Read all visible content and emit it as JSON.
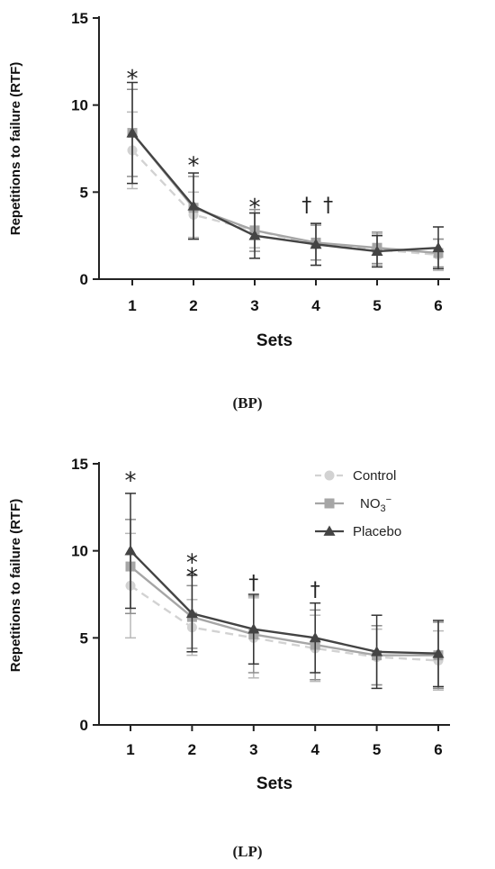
{
  "chart_data": [
    {
      "type": "line",
      "caption": "(BP)",
      "xlabel": "Sets",
      "ylabel": "Repetitions to failure (RTF)",
      "x": [
        1,
        2,
        3,
        4,
        5,
        6
      ],
      "xticks": [
        "1",
        "2",
        "3",
        "4",
        "5",
        "6"
      ],
      "ylim": [
        0,
        15
      ],
      "yticks": [
        "0",
        "5",
        "10",
        "15"
      ],
      "series": [
        {
          "name": "Control",
          "marker": "circle",
          "style": "dashed",
          "color": "#d2d2d2",
          "values": [
            7.4,
            3.7,
            2.8,
            2.0,
            1.7,
            1.4
          ],
          "error": [
            2.2,
            1.3,
            1.0,
            1.2,
            0.9,
            0.9
          ]
        },
        {
          "name": "NO3−",
          "marker": "square",
          "style": "solid",
          "color": "#a6a6a6",
          "values": [
            8.4,
            4.1,
            2.8,
            2.1,
            1.8,
            1.5
          ],
          "error": [
            2.5,
            1.8,
            1.2,
            1.0,
            0.9,
            0.8
          ]
        },
        {
          "name": "Placebo",
          "marker": "triangle",
          "style": "solid",
          "color": "#444444",
          "values": [
            8.4,
            4.2,
            2.5,
            2.0,
            1.6,
            1.8
          ],
          "error": [
            2.9,
            1.9,
            1.3,
            1.2,
            0.9,
            1.2
          ]
        }
      ],
      "annotations": [
        {
          "x": 1,
          "y": 11.8,
          "text": "*"
        },
        {
          "x": 2,
          "y": 6.8,
          "text": "*"
        },
        {
          "x": 3,
          "y": 4.4,
          "text": "*"
        },
        {
          "x": 3.85,
          "y": 4.3,
          "text": "†"
        },
        {
          "x": 4.2,
          "y": 4.3,
          "text": "†"
        }
      ]
    },
    {
      "type": "line",
      "caption": "(LP)",
      "xlabel": "Sets",
      "ylabel": "Repetitions to failure (RTF)",
      "x": [
        1,
        2,
        3,
        4,
        5,
        6
      ],
      "xticks": [
        "1",
        "2",
        "3",
        "4",
        "5",
        "6"
      ],
      "ylim": [
        0,
        15
      ],
      "yticks": [
        "0",
        "5",
        "10",
        "15"
      ],
      "legend_position": "top-right",
      "series": [
        {
          "name": "Control",
          "marker": "circle",
          "style": "dashed",
          "color": "#d2d2d2",
          "values": [
            8.0,
            5.6,
            5.0,
            4.4,
            3.9,
            3.7
          ],
          "error": [
            3.0,
            1.6,
            2.3,
            1.9,
            1.6,
            1.7
          ]
        },
        {
          "name": "NO3−",
          "marker": "square",
          "style": "solid",
          "color": "#a6a6a6",
          "values": [
            9.1,
            6.2,
            5.2,
            4.6,
            4.0,
            4.0
          ],
          "error": [
            2.7,
            1.8,
            2.2,
            2.0,
            1.7,
            1.9
          ]
        },
        {
          "name": "Placebo",
          "marker": "triangle",
          "style": "solid",
          "color": "#444444",
          "values": [
            10.0,
            6.4,
            5.5,
            5.0,
            4.2,
            4.1
          ],
          "error": [
            3.3,
            2.2,
            2.0,
            2.0,
            2.1,
            1.9
          ]
        }
      ],
      "annotations": [
        {
          "x": 1,
          "y": 14.3,
          "text": "*"
        },
        {
          "x": 2,
          "y": 9.6,
          "text": "*"
        },
        {
          "x": 2,
          "y": 8.8,
          "text": "*"
        },
        {
          "x": 3,
          "y": 8.2,
          "text": "†"
        },
        {
          "x": 4,
          "y": 7.8,
          "text": "†"
        }
      ],
      "legend": [
        {
          "label": "Control",
          "marker": "circle",
          "style": "dashed",
          "color": "#d2d2d2"
        },
        {
          "label_main": "NO",
          "label_sub": "3",
          "label_sup": "−",
          "marker": "square",
          "style": "solid",
          "color": "#a6a6a6"
        },
        {
          "label": "Placebo",
          "marker": "triangle",
          "style": "solid",
          "color": "#444444"
        }
      ]
    }
  ]
}
